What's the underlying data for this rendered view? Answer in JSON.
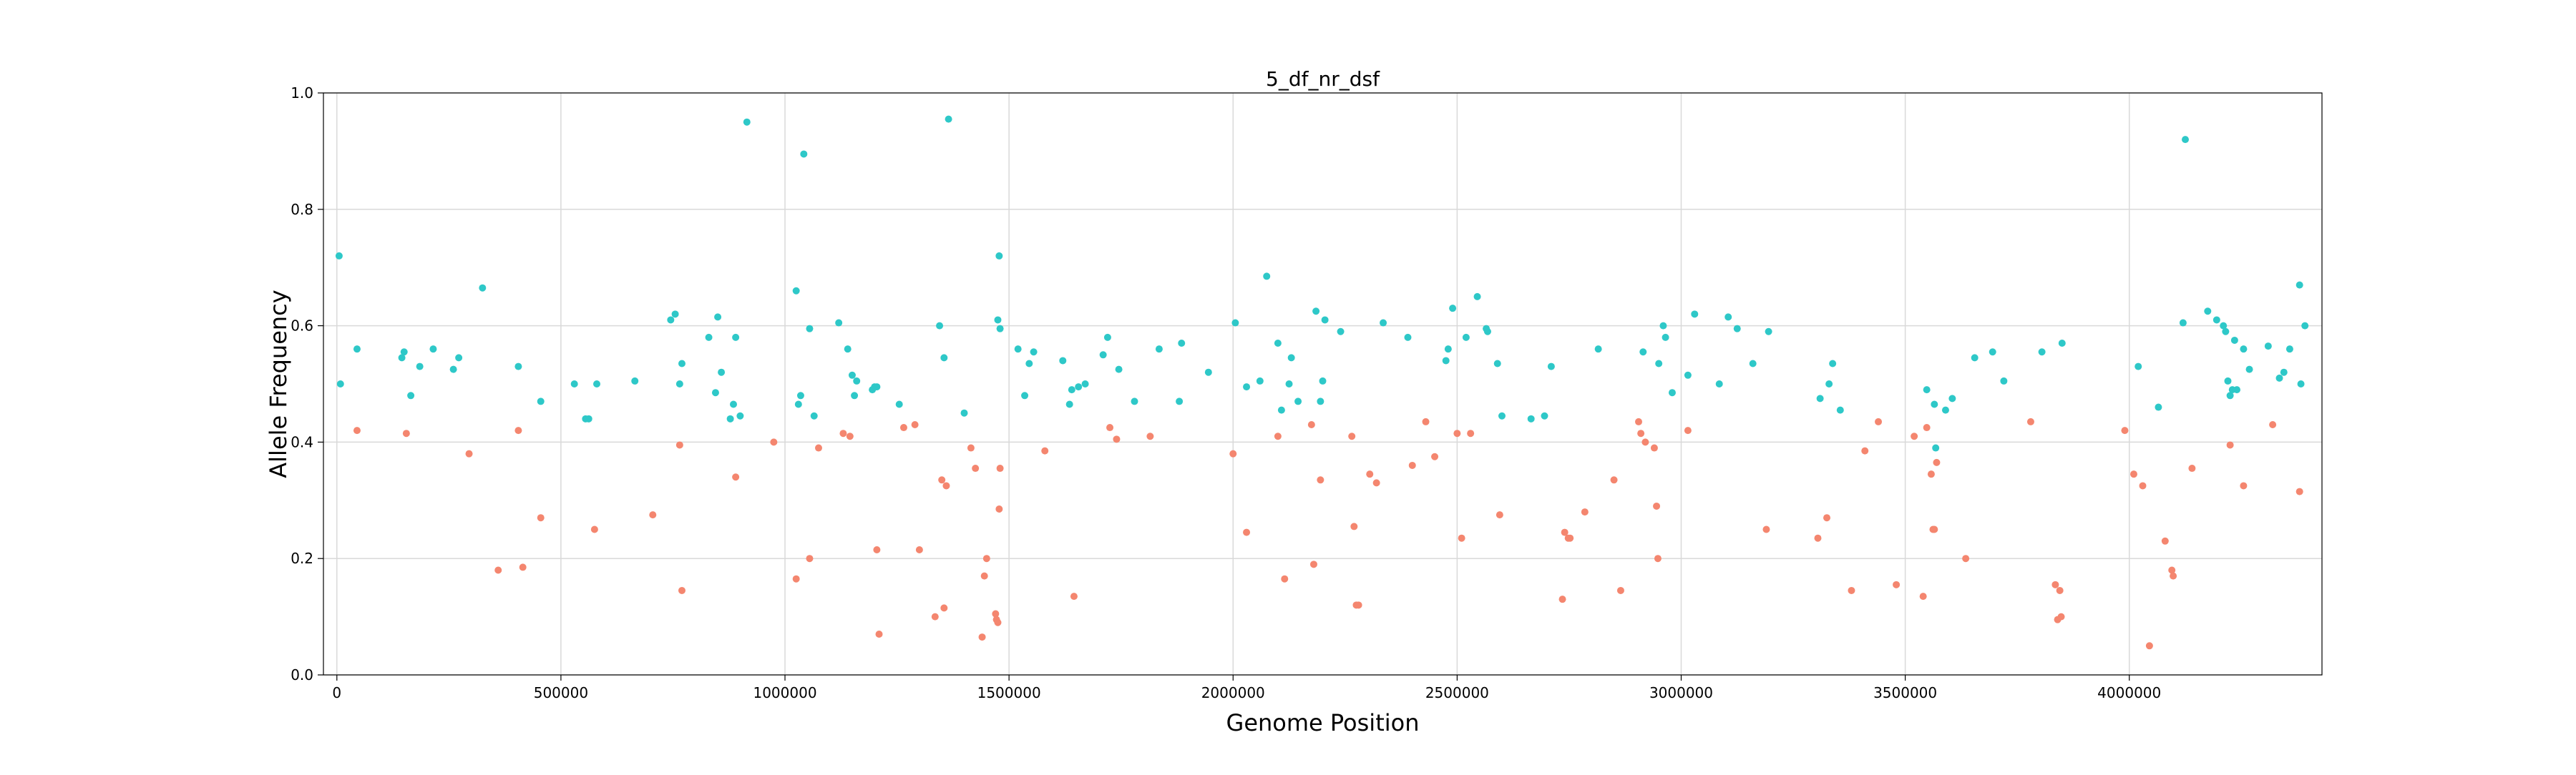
{
  "chart_data": {
    "type": "scatter",
    "title": "5_df_nr_dsf",
    "xlabel": "Genome Position",
    "ylabel": "Allele Frequency",
    "xlim": [
      -30000,
      4430000
    ],
    "ylim": [
      0.0,
      1.0
    ],
    "grid": true,
    "x_ticks": [
      0,
      500000,
      1000000,
      1500000,
      2000000,
      2500000,
      3000000,
      3500000,
      4000000
    ],
    "x_tick_labels": [
      "0",
      "500000",
      "1000000",
      "1500000",
      "2000000",
      "2500000",
      "3000000",
      "3500000",
      "4000000"
    ],
    "y_ticks": [
      0.0,
      0.2,
      0.4,
      0.6,
      0.8,
      1.0
    ],
    "y_tick_labels": [
      "0.0",
      "0.2",
      "0.4",
      "0.6",
      "0.8",
      "1.0"
    ],
    "series": [
      {
        "color": "#2ec8c8",
        "points": [
          [
            5000,
            0.72
          ],
          [
            8000,
            0.5
          ],
          [
            45000,
            0.56
          ],
          [
            145000,
            0.545
          ],
          [
            150000,
            0.555
          ],
          [
            165000,
            0.48
          ],
          [
            185000,
            0.53
          ],
          [
            215000,
            0.56
          ],
          [
            260000,
            0.525
          ],
          [
            272000,
            0.545
          ],
          [
            325000,
            0.665
          ],
          [
            405000,
            0.53
          ],
          [
            455000,
            0.47
          ],
          [
            530000,
            0.5
          ],
          [
            555000,
            0.44
          ],
          [
            562000,
            0.44
          ],
          [
            580000,
            0.5
          ],
          [
            665000,
            0.505
          ],
          [
            745000,
            0.61
          ],
          [
            755000,
            0.62
          ],
          [
            765000,
            0.5
          ],
          [
            770000,
            0.535
          ],
          [
            830000,
            0.58
          ],
          [
            845000,
            0.485
          ],
          [
            850000,
            0.615
          ],
          [
            858000,
            0.52
          ],
          [
            878000,
            0.44
          ],
          [
            885000,
            0.465
          ],
          [
            890000,
            0.58
          ],
          [
            900000,
            0.445
          ],
          [
            915000,
            0.95
          ],
          [
            1025000,
            0.66
          ],
          [
            1030000,
            0.465
          ],
          [
            1035000,
            0.48
          ],
          [
            1042000,
            0.895
          ],
          [
            1055000,
            0.595
          ],
          [
            1065000,
            0.445
          ],
          [
            1120000,
            0.605
          ],
          [
            1140000,
            0.56
          ],
          [
            1150000,
            0.515
          ],
          [
            1155000,
            0.48
          ],
          [
            1160000,
            0.505
          ],
          [
            1195000,
            0.49
          ],
          [
            1200000,
            0.495
          ],
          [
            1205000,
            0.495
          ],
          [
            1255000,
            0.465
          ],
          [
            1345000,
            0.6
          ],
          [
            1355000,
            0.545
          ],
          [
            1365000,
            0.955
          ],
          [
            1400000,
            0.45
          ],
          [
            1475000,
            0.61
          ],
          [
            1478000,
            0.72
          ],
          [
            1480000,
            0.595
          ],
          [
            1520000,
            0.56
          ],
          [
            1535000,
            0.48
          ],
          [
            1545000,
            0.535
          ],
          [
            1555000,
            0.555
          ],
          [
            1620000,
            0.54
          ],
          [
            1635000,
            0.465
          ],
          [
            1640000,
            0.49
          ],
          [
            1655000,
            0.495
          ],
          [
            1670000,
            0.5
          ],
          [
            1710000,
            0.55
          ],
          [
            1720000,
            0.58
          ],
          [
            1745000,
            0.525
          ],
          [
            1780000,
            0.47
          ],
          [
            1835000,
            0.56
          ],
          [
            1880000,
            0.47
          ],
          [
            1885000,
            0.57
          ],
          [
            1945000,
            0.52
          ],
          [
            2005000,
            0.605
          ],
          [
            2030000,
            0.495
          ],
          [
            2060000,
            0.505
          ],
          [
            2075000,
            0.685
          ],
          [
            2100000,
            0.57
          ],
          [
            2108000,
            0.455
          ],
          [
            2125000,
            0.5
          ],
          [
            2130000,
            0.545
          ],
          [
            2145000,
            0.47
          ],
          [
            2185000,
            0.625
          ],
          [
            2195000,
            0.47
          ],
          [
            2200000,
            0.505
          ],
          [
            2205000,
            0.61
          ],
          [
            2240000,
            0.59
          ],
          [
            2335000,
            0.605
          ],
          [
            2390000,
            0.58
          ],
          [
            2475000,
            0.54
          ],
          [
            2480000,
            0.56
          ],
          [
            2490000,
            0.63
          ],
          [
            2520000,
            0.58
          ],
          [
            2545000,
            0.65
          ],
          [
            2565000,
            0.595
          ],
          [
            2568000,
            0.59
          ],
          [
            2590000,
            0.535
          ],
          [
            2600000,
            0.445
          ],
          [
            2665000,
            0.44
          ],
          [
            2695000,
            0.445
          ],
          [
            2710000,
            0.53
          ],
          [
            2815000,
            0.56
          ],
          [
            2915000,
            0.555
          ],
          [
            2950000,
            0.535
          ],
          [
            2960000,
            0.6
          ],
          [
            2965000,
            0.58
          ],
          [
            2980000,
            0.485
          ],
          [
            3015000,
            0.515
          ],
          [
            3030000,
            0.62
          ],
          [
            3085000,
            0.5
          ],
          [
            3105000,
            0.615
          ],
          [
            3125000,
            0.595
          ],
          [
            3160000,
            0.535
          ],
          [
            3195000,
            0.59
          ],
          [
            3310000,
            0.475
          ],
          [
            3330000,
            0.5
          ],
          [
            3338000,
            0.535
          ],
          [
            3355000,
            0.455
          ],
          [
            3548000,
            0.49
          ],
          [
            3565000,
            0.465
          ],
          [
            3568000,
            0.39
          ],
          [
            3590000,
            0.455
          ],
          [
            3605000,
            0.475
          ],
          [
            3655000,
            0.545
          ],
          [
            3695000,
            0.555
          ],
          [
            3720000,
            0.505
          ],
          [
            3805000,
            0.555
          ],
          [
            3850000,
            0.57
          ],
          [
            4020000,
            0.53
          ],
          [
            4065000,
            0.46
          ],
          [
            4120000,
            0.605
          ],
          [
            4125000,
            0.92
          ],
          [
            4175000,
            0.625
          ],
          [
            4195000,
            0.61
          ],
          [
            4210000,
            0.6
          ],
          [
            4215000,
            0.59
          ],
          [
            4220000,
            0.505
          ],
          [
            4225000,
            0.48
          ],
          [
            4230000,
            0.49
          ],
          [
            4235000,
            0.575
          ],
          [
            4240000,
            0.49
          ],
          [
            4255000,
            0.56
          ],
          [
            4268000,
            0.525
          ],
          [
            4310000,
            0.565
          ],
          [
            4335000,
            0.51
          ],
          [
            4345000,
            0.52
          ],
          [
            4358000,
            0.56
          ],
          [
            4380000,
            0.67
          ],
          [
            4383000,
            0.5
          ],
          [
            4392000,
            0.6
          ]
        ]
      },
      {
        "color": "#f4866f",
        "points": [
          [
            45000,
            0.42
          ],
          [
            155000,
            0.415
          ],
          [
            295000,
            0.38
          ],
          [
            360000,
            0.18
          ],
          [
            405000,
            0.42
          ],
          [
            415000,
            0.185
          ],
          [
            455000,
            0.27
          ],
          [
            575000,
            0.25
          ],
          [
            705000,
            0.275
          ],
          [
            765000,
            0.395
          ],
          [
            770000,
            0.145
          ],
          [
            890000,
            0.34
          ],
          [
            975000,
            0.4
          ],
          [
            1025000,
            0.165
          ],
          [
            1055000,
            0.2
          ],
          [
            1075000,
            0.39
          ],
          [
            1130000,
            0.415
          ],
          [
            1145000,
            0.41
          ],
          [
            1205000,
            0.215
          ],
          [
            1210000,
            0.07
          ],
          [
            1265000,
            0.425
          ],
          [
            1290000,
            0.43
          ],
          [
            1300000,
            0.215
          ],
          [
            1335000,
            0.1
          ],
          [
            1350000,
            0.335
          ],
          [
            1355000,
            0.115
          ],
          [
            1360000,
            0.325
          ],
          [
            1415000,
            0.39
          ],
          [
            1425000,
            0.355
          ],
          [
            1440000,
            0.065
          ],
          [
            1445000,
            0.17
          ],
          [
            1450000,
            0.2
          ],
          [
            1470000,
            0.105
          ],
          [
            1472000,
            0.095
          ],
          [
            1475000,
            0.09
          ],
          [
            1478000,
            0.285
          ],
          [
            1480000,
            0.355
          ],
          [
            1580000,
            0.385
          ],
          [
            1645000,
            0.135
          ],
          [
            1725000,
            0.425
          ],
          [
            1740000,
            0.405
          ],
          [
            1815000,
            0.41
          ],
          [
            2000000,
            0.38
          ],
          [
            2030000,
            0.245
          ],
          [
            2100000,
            0.41
          ],
          [
            2115000,
            0.165
          ],
          [
            2175000,
            0.43
          ],
          [
            2180000,
            0.19
          ],
          [
            2195000,
            0.335
          ],
          [
            2265000,
            0.41
          ],
          [
            2270000,
            0.255
          ],
          [
            2275000,
            0.12
          ],
          [
            2280000,
            0.12
          ],
          [
            2305000,
            0.345
          ],
          [
            2320000,
            0.33
          ],
          [
            2400000,
            0.36
          ],
          [
            2430000,
            0.435
          ],
          [
            2450000,
            0.375
          ],
          [
            2500000,
            0.415
          ],
          [
            2510000,
            0.235
          ],
          [
            2530000,
            0.415
          ],
          [
            2595000,
            0.275
          ],
          [
            2735000,
            0.13
          ],
          [
            2740000,
            0.245
          ],
          [
            2748000,
            0.235
          ],
          [
            2752000,
            0.235
          ],
          [
            2785000,
            0.28
          ],
          [
            2850000,
            0.335
          ],
          [
            2865000,
            0.145
          ],
          [
            2905000,
            0.435
          ],
          [
            2910000,
            0.415
          ],
          [
            2920000,
            0.4
          ],
          [
            2940000,
            0.39
          ],
          [
            2945000,
            0.29
          ],
          [
            2948000,
            0.2
          ],
          [
            3015000,
            0.42
          ],
          [
            3190000,
            0.25
          ],
          [
            3305000,
            0.235
          ],
          [
            3325000,
            0.27
          ],
          [
            3380000,
            0.145
          ],
          [
            3410000,
            0.385
          ],
          [
            3440000,
            0.435
          ],
          [
            3480000,
            0.155
          ],
          [
            3520000,
            0.41
          ],
          [
            3540000,
            0.135
          ],
          [
            3548000,
            0.425
          ],
          [
            3558000,
            0.345
          ],
          [
            3562000,
            0.25
          ],
          [
            3565000,
            0.25
          ],
          [
            3570000,
            0.365
          ],
          [
            3635000,
            0.2
          ],
          [
            3780000,
            0.435
          ],
          [
            3835000,
            0.155
          ],
          [
            3840000,
            0.095
          ],
          [
            3845000,
            0.145
          ],
          [
            3848000,
            0.1
          ],
          [
            3990000,
            0.42
          ],
          [
            4010000,
            0.345
          ],
          [
            4030000,
            0.325
          ],
          [
            4045000,
            0.05
          ],
          [
            4080000,
            0.23
          ],
          [
            4095000,
            0.18
          ],
          [
            4098000,
            0.17
          ],
          [
            4140000,
            0.355
          ],
          [
            4225000,
            0.395
          ],
          [
            4255000,
            0.325
          ],
          [
            4320000,
            0.43
          ],
          [
            4380000,
            0.315
          ]
        ]
      }
    ]
  }
}
